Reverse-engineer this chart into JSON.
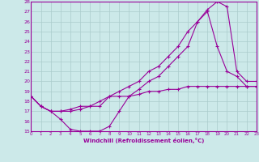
{
  "xlabel": "Windchill (Refroidissement éolien,°C)",
  "bg_color": "#cce9e9",
  "line_color": "#990099",
  "grid_color": "#aacccc",
  "xmin": 0,
  "xmax": 23,
  "ymin": 15,
  "ymax": 28,
  "line1_x": [
    0,
    1,
    2,
    3,
    4,
    5,
    6,
    7,
    8,
    9,
    10,
    11,
    12,
    13,
    14,
    15,
    16,
    17,
    18,
    19,
    20,
    21,
    22,
    23
  ],
  "line1_y": [
    18.5,
    17.5,
    17.0,
    16.2,
    15.2,
    15.0,
    15.0,
    15.0,
    15.5,
    17.0,
    18.5,
    19.2,
    20.0,
    20.5,
    21.5,
    22.5,
    23.5,
    26.0,
    27.2,
    28.0,
    27.5,
    21.0,
    20.0,
    20.0
  ],
  "line2_x": [
    0,
    1,
    2,
    3,
    4,
    5,
    6,
    7,
    8,
    9,
    10,
    11,
    12,
    13,
    14,
    15,
    16,
    17,
    18,
    19,
    20,
    21,
    22,
    23
  ],
  "line2_y": [
    18.5,
    17.5,
    17.0,
    17.0,
    17.0,
    17.2,
    17.5,
    17.5,
    18.5,
    19.0,
    19.5,
    20.0,
    21.0,
    21.5,
    22.5,
    23.5,
    25.0,
    26.0,
    27.0,
    23.5,
    21.0,
    20.5,
    19.5,
    19.5
  ],
  "line3_x": [
    0,
    1,
    2,
    3,
    4,
    5,
    6,
    7,
    8,
    9,
    10,
    11,
    12,
    13,
    14,
    15,
    16,
    17,
    18,
    19,
    20,
    21,
    22,
    23
  ],
  "line3_y": [
    18.5,
    17.5,
    17.0,
    17.0,
    17.2,
    17.5,
    17.5,
    18.0,
    18.5,
    18.5,
    18.5,
    18.7,
    19.0,
    19.0,
    19.2,
    19.2,
    19.5,
    19.5,
    19.5,
    19.5,
    19.5,
    19.5,
    19.5,
    19.5
  ]
}
